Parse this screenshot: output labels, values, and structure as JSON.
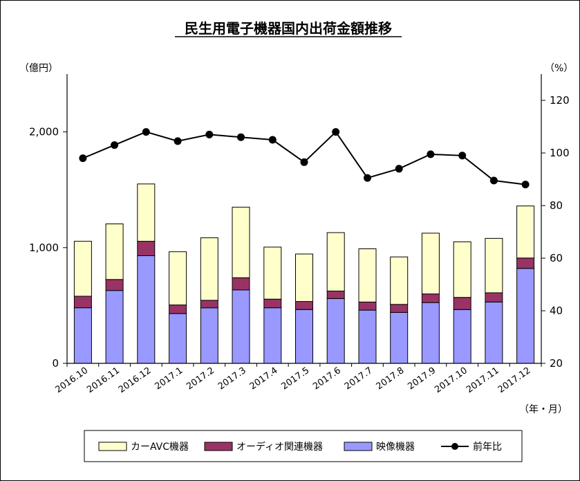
{
  "chart_data": {
    "type": "bar",
    "title": "民生用電子機器国内出荷金額推移",
    "y_left_label": "（億円）",
    "y_right_label": "（%）",
    "x_unit_label": "（年・月）",
    "categories": [
      "2016.10",
      "2016.11",
      "2016.12",
      "2017.1",
      "2017.2",
      "2017.3",
      "2017.4",
      "2017.5",
      "2017.6",
      "2017.7",
      "2017.8",
      "2017.9",
      "2017.10",
      "2017.11",
      "2017.12"
    ],
    "ylim_left": [
      0,
      2500
    ],
    "yticks_left": [
      0,
      1000,
      2000
    ],
    "ytick_labels_left": [
      "0",
      "1,000",
      "2,000"
    ],
    "ylim_right": [
      20,
      130
    ],
    "yticks_right": [
      20,
      40,
      60,
      80,
      100,
      120
    ],
    "ytick_labels_right": [
      "20",
      "40",
      "60",
      "80",
      "100",
      "120"
    ],
    "stacked": true,
    "series": [
      {
        "name": "映像機器",
        "kind": "bar",
        "axis": "left",
        "color": "#9999ff",
        "values": [
          480,
          630,
          930,
          430,
          480,
          635,
          480,
          465,
          560,
          460,
          440,
          525,
          465,
          530,
          820
        ]
      },
      {
        "name": "オーディオ関連機器",
        "kind": "bar",
        "axis": "left",
        "color": "#993366",
        "values": [
          100,
          95,
          125,
          75,
          65,
          105,
          75,
          70,
          65,
          70,
          70,
          75,
          105,
          80,
          90
        ]
      },
      {
        "name": "カーAVC機器",
        "kind": "bar",
        "axis": "left",
        "color": "#ffffcc",
        "values": [
          475,
          480,
          495,
          460,
          540,
          610,
          450,
          410,
          505,
          460,
          410,
          525,
          480,
          470,
          450
        ]
      },
      {
        "name": "前年比",
        "kind": "line",
        "axis": "right",
        "color": "#000000",
        "values": [
          98,
          103,
          108,
          104.5,
          107,
          106,
          105,
          96.5,
          108,
          90.5,
          94,
          99.5,
          99,
          89.5,
          88
        ]
      }
    ],
    "legend_order": [
      "カーAVC機器",
      "オーディオ関連機器",
      "映像機器",
      "前年比"
    ],
    "legend_position": "bottom",
    "grid": false
  }
}
